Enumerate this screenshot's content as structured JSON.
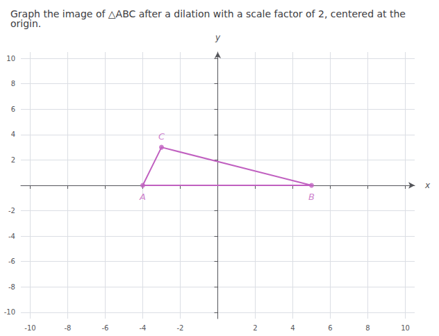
{
  "chart_data": {
    "type": "line",
    "title": "Graph the image of △ABC after a dilation with a scale factor of 2, centered at the origin.",
    "xlabel": "x",
    "ylabel": "y",
    "x": [
      -4,
      -3,
      5,
      -4
    ],
    "values": [
      0,
      3,
      0,
      0
    ],
    "color": "#c060c0",
    "marker": "circle",
    "annotations": [
      {
        "text": "A",
        "x": -4,
        "y": 0
      },
      {
        "text": "B",
        "x": 5,
        "y": 0
      },
      {
        "text": "C",
        "x": -3,
        "y": 3
      }
    ],
    "xlim": [
      -10.5,
      10.5
    ],
    "ylim": [
      -10.5,
      10.5
    ],
    "xticks": [
      -10,
      -8,
      -6,
      -4,
      -2,
      2,
      4,
      6,
      8,
      10
    ],
    "yticks": [
      -10,
      -8,
      -6,
      -4,
      -2,
      2,
      4,
      6,
      8,
      10
    ],
    "grid": true
  }
}
